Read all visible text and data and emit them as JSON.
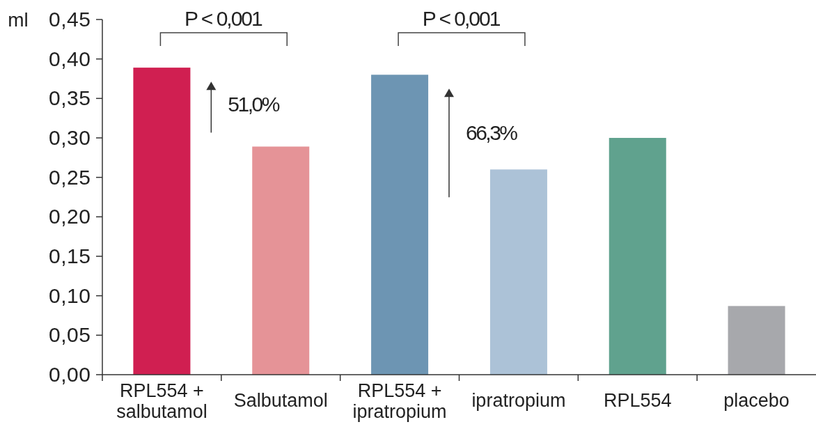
{
  "chart_data": {
    "type": "bar",
    "ylabel": "ml",
    "categories": [
      "RPL554 +\nsalbutamol",
      "Salbutamol",
      "RPL554 +\nipratropium",
      "ipratropium",
      "RPL554",
      "placebo"
    ],
    "values": [
      0.389,
      0.289,
      0.38,
      0.26,
      0.3,
      0.087
    ],
    "colors": [
      "#d01f51",
      "#e59397",
      "#6d95b3",
      "#acc2d7",
      "#60a28e",
      "#a7a8ac"
    ],
    "ylim": [
      0,
      0.45
    ],
    "yticks": [
      {
        "value": 0,
        "label": "0,00"
      },
      {
        "value": 0.05,
        "label": "0,05"
      },
      {
        "value": 0.1,
        "label": "0,10"
      },
      {
        "value": 0.15,
        "label": "0,15"
      },
      {
        "value": 0.2,
        "label": "0,20"
      },
      {
        "value": 0.25,
        "label": "0,25"
      },
      {
        "value": 0.3,
        "label": "0,30"
      },
      {
        "value": 0.35,
        "label": "0,35"
      },
      {
        "value": 0.4,
        "label": "0,40"
      },
      {
        "value": 0.45,
        "label": "0,45"
      }
    ],
    "annotations": [
      "P < 0,001",
      "51,0%",
      "P < 0,001",
      "66,3%"
    ],
    "grid": false
  }
}
